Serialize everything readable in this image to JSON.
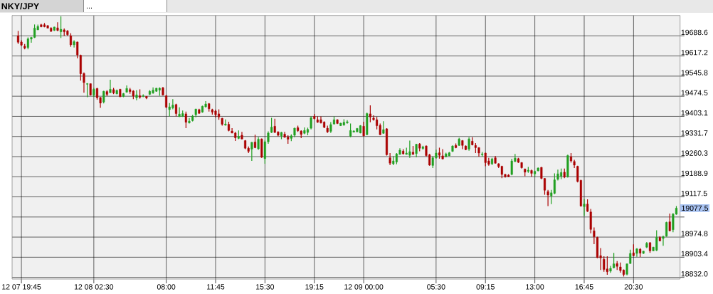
{
  "chart_data": {
    "type": "candlestick",
    "title": "NKY/JPY",
    "subtitle": "...",
    "categories": [
      null,
      "12 07 19:45",
      null,
      null,
      null,
      null,
      null,
      null,
      null,
      null,
      null,
      null,
      null,
      null,
      null,
      null,
      null,
      null,
      null,
      null,
      null,
      null,
      null,
      "12 08 02:30",
      null,
      null,
      null,
      null,
      null,
      null,
      null,
      null,
      null,
      null,
      null,
      null,
      null,
      null,
      null,
      null,
      null,
      null,
      null,
      null,
      null,
      "08:00",
      null,
      null,
      null,
      null,
      null,
      null,
      null,
      null,
      null,
      null,
      null,
      null,
      null,
      null,
      "11:45",
      null,
      null,
      null,
      null,
      null,
      null,
      null,
      null,
      null,
      null,
      null,
      null,
      null,
      null,
      "15:30",
      null,
      null,
      null,
      null,
      null,
      null,
      null,
      null,
      null,
      null,
      null,
      null,
      null,
      null,
      "19:15",
      null,
      null,
      null,
      null,
      null,
      null,
      null,
      null,
      null,
      null,
      null,
      null,
      null,
      null,
      "12 09 00:00",
      null,
      null,
      null,
      null,
      null,
      null,
      null,
      null,
      null,
      null,
      null,
      null,
      null,
      null,
      null,
      null,
      null,
      null,
      null,
      null,
      null,
      "05:30",
      null,
      null,
      null,
      null,
      null,
      null,
      null,
      null,
      null,
      null,
      null,
      null,
      null,
      null,
      "09:15",
      null,
      null,
      null,
      null,
      null,
      null,
      null,
      null,
      null,
      null,
      null,
      null,
      null,
      null,
      "13:00",
      null,
      null,
      null,
      null,
      null,
      null,
      null,
      null,
      null,
      null,
      null,
      null,
      null,
      null,
      "16:45",
      null,
      null,
      null,
      null,
      null,
      null,
      null,
      null,
      null,
      null,
      null,
      null,
      null,
      null,
      "20:30",
      null,
      null,
      null,
      null,
      null,
      null,
      null,
      null,
      null,
      null,
      null,
      null,
      null
    ],
    "ohlc": [
      [
        19689,
        19706,
        19660,
        19666
      ],
      [
        19667,
        19673,
        19652,
        19656
      ],
      [
        19652,
        19660,
        19641,
        19645
      ],
      [
        19647,
        19683,
        19641,
        19678
      ],
      [
        19677,
        19685,
        19664,
        19683
      ],
      [
        19683,
        19729,
        19681,
        19716
      ],
      [
        19710,
        19729,
        19709,
        19722
      ],
      [
        19728,
        19731,
        19719,
        19721
      ],
      [
        19728,
        19734,
        19719,
        19721
      ],
      [
        19725,
        19727,
        19715,
        19716
      ],
      [
        19716,
        19719,
        19702,
        19705
      ],
      [
        19708,
        19721,
        19706,
        19720
      ],
      [
        19717,
        19737,
        19705,
        19708
      ],
      [
        19703,
        19758,
        19681,
        19712
      ],
      [
        19710,
        19715,
        19689,
        19703
      ],
      [
        19706,
        19709,
        19689,
        19693
      ],
      [
        19689,
        19698,
        19650,
        19657
      ],
      [
        19657,
        19673,
        19647,
        19668
      ],
      [
        19667,
        19668,
        19609,
        19621
      ],
      [
        19620,
        19622,
        19530,
        19554
      ],
      [
        19555,
        19559,
        19487,
        19523
      ],
      [
        19517,
        19521,
        19471,
        19519
      ],
      [
        19519,
        19520,
        19477,
        19479
      ],
      [
        19479,
        19504,
        19472,
        19499
      ],
      [
        19502,
        19504,
        19462,
        19469
      ],
      [
        19470,
        19472,
        19433,
        19450
      ],
      [
        19454,
        19494,
        19449,
        19492
      ],
      [
        19491,
        19496,
        19475,
        19481
      ],
      [
        19487,
        19533,
        19486,
        19499
      ],
      [
        19498,
        19504,
        19482,
        19486
      ],
      [
        19483,
        19498,
        19481,
        19495
      ],
      [
        19499,
        19501,
        19471,
        19473
      ],
      [
        19474,
        19486,
        19471,
        19484
      ],
      [
        19489,
        19513,
        19487,
        19502
      ],
      [
        19498,
        19504,
        19483,
        19491
      ],
      [
        19493,
        19496,
        19464,
        19475
      ],
      [
        19469,
        19496,
        19460,
        19479
      ],
      [
        19476,
        19499,
        19466,
        19471
      ],
      [
        19474,
        19481,
        19471,
        19476
      ],
      [
        19474,
        19475,
        19464,
        19468
      ],
      [
        19481,
        19496,
        19479,
        19492
      ],
      [
        19486,
        19506,
        19483,
        19496
      ],
      [
        19492,
        19504,
        19490,
        19503
      ],
      [
        19496,
        19506,
        19476,
        19503
      ],
      [
        19504,
        19508,
        19477,
        19479
      ],
      [
        19476,
        19479,
        19433,
        19435
      ],
      [
        19427,
        19450,
        19403,
        19437
      ],
      [
        19433,
        19464,
        19428,
        19443
      ],
      [
        19445,
        19448,
        19403,
        19413
      ],
      [
        19402,
        19435,
        19401,
        19411
      ],
      [
        19403,
        19424,
        19401,
        19413
      ],
      [
        19412,
        19420,
        19361,
        19382
      ],
      [
        19380,
        19397,
        19378,
        19386
      ],
      [
        19388,
        19408,
        19385,
        19404
      ],
      [
        19409,
        19430,
        19400,
        19429
      ],
      [
        19427,
        19430,
        19412,
        19414
      ],
      [
        19418,
        19441,
        19416,
        19439
      ],
      [
        19437,
        19457,
        19434,
        19447
      ],
      [
        19448,
        19450,
        19420,
        19430
      ],
      [
        19427,
        19430,
        19409,
        19418
      ],
      [
        19422,
        19427,
        19399,
        19409
      ],
      [
        19412,
        19428,
        19391,
        19401
      ],
      [
        19396,
        19398,
        19370,
        19375
      ],
      [
        19372,
        19392,
        19370,
        19376
      ],
      [
        19375,
        19384,
        19350,
        19353
      ],
      [
        19351,
        19361,
        19343,
        19344
      ],
      [
        19344,
        19348,
        19316,
        19327
      ],
      [
        19325,
        19353,
        19322,
        19332
      ],
      [
        19336,
        19348,
        19321,
        19323
      ],
      [
        19317,
        19319,
        19287,
        19290
      ],
      [
        19290,
        19296,
        19273,
        19279
      ],
      [
        19287,
        19312,
        19245,
        19311
      ],
      [
        19312,
        19338,
        19290,
        19292
      ],
      [
        19288,
        19330,
        19284,
        19322
      ],
      [
        19323,
        19325,
        19256,
        19258
      ],
      [
        19253,
        19319,
        19235,
        19313
      ],
      [
        19313,
        19350,
        19306,
        19344
      ],
      [
        19346,
        19398,
        19344,
        19365
      ],
      [
        19368,
        19395,
        19344,
        19346
      ],
      [
        19348,
        19350,
        19332,
        19336
      ],
      [
        19334,
        19348,
        19322,
        19346
      ],
      [
        19340,
        19348,
        19327,
        19329
      ],
      [
        19330,
        19336,
        19306,
        19322
      ],
      [
        19325,
        19339,
        19315,
        19334
      ],
      [
        19336,
        19363,
        19329,
        19361
      ],
      [
        19363,
        19370,
        19348,
        19352
      ],
      [
        19351,
        19354,
        19326,
        19339
      ],
      [
        19343,
        19364,
        19340,
        19353
      ],
      [
        19346,
        19363,
        19336,
        19357
      ],
      [
        19361,
        19403,
        19357,
        19398
      ],
      [
        19403,
        19412,
        19392,
        19395
      ],
      [
        19391,
        19403,
        19380,
        19382
      ],
      [
        19391,
        19403,
        19378,
        19380
      ],
      [
        19383,
        19385,
        19361,
        19364
      ],
      [
        19361,
        19370,
        19344,
        19348
      ],
      [
        19350,
        19383,
        19344,
        19374
      ],
      [
        19376,
        19403,
        19374,
        19391
      ],
      [
        19391,
        19393,
        19376,
        19378
      ],
      [
        19370,
        19380,
        19369,
        19379
      ],
      [
        19372,
        19393,
        19370,
        19382
      ],
      [
        19380,
        19390,
        19377,
        19384
      ],
      [
        19332,
        19378,
        19329,
        19353
      ],
      [
        19347,
        19354,
        19346,
        19351
      ],
      [
        19348,
        19362,
        19347,
        19360
      ],
      [
        19344,
        19372,
        19343,
        19370
      ],
      [
        19368,
        19384,
        19332,
        19334
      ],
      [
        19338,
        19416,
        19337,
        19413
      ],
      [
        19412,
        19442,
        19382,
        19401
      ],
      [
        19397,
        19407,
        19388,
        19391
      ],
      [
        19391,
        19401,
        19357,
        19370
      ],
      [
        19371,
        19378,
        19337,
        19338
      ],
      [
        19343,
        19386,
        19341,
        19356
      ],
      [
        19359,
        19361,
        19264,
        19267
      ],
      [
        19256,
        19273,
        19230,
        19237
      ],
      [
        19235,
        19262,
        19230,
        19245
      ],
      [
        19241,
        19273,
        19233,
        19270
      ],
      [
        19268,
        19290,
        19267,
        19283
      ],
      [
        19280,
        19287,
        19268,
        19270
      ],
      [
        19268,
        19292,
        19267,
        19273
      ],
      [
        19265,
        19317,
        19256,
        19278
      ],
      [
        19276,
        19298,
        19267,
        19268
      ],
      [
        19271,
        19306,
        19258,
        19304
      ],
      [
        19305,
        19308,
        19279,
        19290
      ],
      [
        19289,
        19299,
        19285,
        19295
      ],
      [
        19298,
        19300,
        19260,
        19264
      ],
      [
        19267,
        19270,
        19228,
        19230
      ],
      [
        19229,
        19262,
        19220,
        19256
      ],
      [
        19256,
        19285,
        19253,
        19273
      ],
      [
        19274,
        19292,
        19253,
        19265
      ],
      [
        19263,
        19287,
        19250,
        19252
      ],
      [
        19260,
        19274,
        19258,
        19270
      ],
      [
        19263,
        19277,
        19262,
        19274
      ],
      [
        19279,
        19300,
        19277,
        19298
      ],
      [
        19300,
        19307,
        19290,
        19292
      ],
      [
        19300,
        19327,
        19298,
        19323
      ],
      [
        19317,
        19319,
        19287,
        19300
      ],
      [
        19298,
        19300,
        19283,
        19285
      ],
      [
        19287,
        19329,
        19281,
        19323
      ],
      [
        19315,
        19329,
        19300,
        19302
      ],
      [
        19300,
        19308,
        19273,
        19292
      ],
      [
        19292,
        19294,
        19260,
        19273
      ],
      [
        19267,
        19277,
        19260,
        19270
      ],
      [
        19273,
        19274,
        19226,
        19239
      ],
      [
        19245,
        19256,
        19228,
        19233
      ],
      [
        19235,
        19256,
        19230,
        19252
      ],
      [
        19256,
        19263,
        19235,
        19237
      ],
      [
        19235,
        19237,
        19220,
        19225
      ],
      [
        19226,
        19228,
        19184,
        19197
      ],
      [
        19197,
        19199,
        19186,
        19189
      ],
      [
        19195,
        19198,
        19187,
        19189
      ],
      [
        19197,
        19253,
        19194,
        19245
      ],
      [
        19243,
        19270,
        19241,
        19255
      ],
      [
        19253,
        19256,
        19238,
        19240
      ],
      [
        19239,
        19241,
        19218,
        19221
      ],
      [
        19216,
        19218,
        19191,
        19205
      ],
      [
        19208,
        19224,
        19203,
        19212
      ],
      [
        19211,
        19214,
        19189,
        19201
      ],
      [
        19199,
        19211,
        19189,
        19208
      ],
      [
        19210,
        19222,
        19208,
        19220
      ],
      [
        19222,
        19224,
        19180,
        19183
      ],
      [
        19183,
        19184,
        19125,
        19141
      ],
      [
        19136,
        19142,
        19085,
        19124
      ],
      [
        19121,
        19142,
        19092,
        19132
      ],
      [
        19130,
        19201,
        19127,
        19178
      ],
      [
        19180,
        19214,
        19176,
        19199
      ],
      [
        19191,
        19218,
        19180,
        19204
      ],
      [
        19205,
        19218,
        19184,
        19188
      ],
      [
        19189,
        19267,
        19186,
        19264
      ],
      [
        19260,
        19273,
        19239,
        19245
      ],
      [
        19243,
        19249,
        19220,
        19230
      ],
      [
        19226,
        19228,
        19169,
        19172
      ],
      [
        19176,
        19178,
        19083,
        19085
      ],
      [
        19083,
        19110,
        19050,
        19092
      ],
      [
        19092,
        19109,
        19064,
        19066
      ],
      [
        19064,
        19075,
        18988,
        19002
      ],
      [
        18997,
        19009,
        18950,
        18976
      ],
      [
        18974,
        18976,
        18900,
        18902
      ],
      [
        18909,
        18936,
        18858,
        18901
      ],
      [
        18896,
        18907,
        18852,
        18860
      ],
      [
        18862,
        18907,
        18841,
        18852
      ],
      [
        18854,
        18873,
        18848,
        18864
      ],
      [
        18866,
        18919,
        18864,
        18880
      ],
      [
        18881,
        18890,
        18858,
        18871
      ],
      [
        18869,
        18885,
        18849,
        18856
      ],
      [
        18858,
        18860,
        18835,
        18842
      ],
      [
        18843,
        18881,
        18839,
        18880
      ],
      [
        18881,
        18930,
        18880,
        18917
      ],
      [
        18919,
        18949,
        18907,
        18909
      ],
      [
        18917,
        18936,
        18905,
        18933
      ],
      [
        18932,
        18936,
        18904,
        18918
      ],
      [
        18917,
        18926,
        18915,
        18925
      ],
      [
        18939,
        18957,
        18936,
        18953
      ],
      [
        18955,
        18957,
        18919,
        18926
      ],
      [
        18926,
        18940,
        18925,
        18939
      ],
      [
        18928,
        18999,
        18925,
        18974
      ],
      [
        18974,
        18978,
        18960,
        18961
      ],
      [
        18970,
        18980,
        18944,
        18976
      ],
      [
        18978,
        19029,
        18976,
        19027
      ],
      [
        19029,
        19058,
        18995,
        18997
      ],
      [
        19001,
        19060,
        18992,
        19056
      ],
      [
        19056,
        19085,
        19054,
        19077.5
      ]
    ],
    "colors": [
      "#aa0000",
      "#aa0000",
      "#aa0000",
      "#22a022",
      "#22a022",
      "#22a022",
      "#22a022",
      "#aa0000",
      "#aa0000",
      "#aa0000",
      "#aa0000",
      "#22a022",
      "#aa0000",
      "#22a022",
      "#aa0000",
      "#aa0000",
      "#aa0000",
      "#22a022",
      "#aa0000",
      "#aa0000",
      "#aa0000",
      "#22a022",
      "#aa0000",
      "#22a022",
      "#aa0000",
      "#aa0000",
      "#22a022",
      "#aa0000",
      "#22a022",
      "#aa0000",
      "#22a022",
      "#aa0000",
      "#22a022",
      "#22a022",
      "#aa0000",
      "#aa0000",
      "#22a022",
      "#aa0000",
      "#22a022",
      "#aa0000",
      "#22a022",
      "#22a022",
      "#22a022",
      "#22a022",
      "#aa0000",
      "#aa0000",
      "#22a022",
      "#22a022",
      "#aa0000",
      "#22a022",
      "#22a022",
      "#aa0000",
      "#22a022",
      "#22a022",
      "#22a022",
      "#aa0000",
      "#22a022",
      "#22a022",
      "#aa0000",
      "#aa0000",
      "#aa0000",
      "#aa0000",
      "#aa0000",
      "#22a022",
      "#aa0000",
      "#aa0000",
      "#aa0000",
      "#22a022",
      "#aa0000",
      "#aa0000",
      "#aa0000",
      "#22a022",
      "#aa0000",
      "#22a022",
      "#aa0000",
      "#22a022",
      "#22a022",
      "#22a022",
      "#aa0000",
      "#aa0000",
      "#22a022",
      "#aa0000",
      "#aa0000",
      "#22a022",
      "#22a022",
      "#aa0000",
      "#aa0000",
      "#22a022",
      "#22a022",
      "#22a022",
      "#aa0000",
      "#aa0000",
      "#aa0000",
      "#aa0000",
      "#aa0000",
      "#22a022",
      "#22a022",
      "#aa0000",
      "#22a022",
      "#22a022",
      "#22a022",
      "#22a022",
      "#22a022",
      "#22a022",
      "#22a022",
      "#aa0000",
      "#22a022",
      "#aa0000",
      "#aa0000",
      "#aa0000",
      "#aa0000",
      "#22a022",
      "#aa0000",
      "#aa0000",
      "#22a022",
      "#22a022",
      "#22a022",
      "#aa0000",
      "#22a022",
      "#22a022",
      "#aa0000",
      "#22a022",
      "#aa0000",
      "#22a022",
      "#aa0000",
      "#aa0000",
      "#22a022",
      "#22a022",
      "#aa0000",
      "#aa0000",
      "#22a022",
      "#22a022",
      "#22a022",
      "#aa0000",
      "#22a022",
      "#aa0000",
      "#aa0000",
      "#22a022",
      "#aa0000",
      "#aa0000",
      "#aa0000",
      "#22a022",
      "#aa0000",
      "#aa0000",
      "#22a022",
      "#aa0000",
      "#aa0000",
      "#aa0000",
      "#aa0000",
      "#aa0000",
      "#22a022",
      "#22a022",
      "#aa0000",
      "#aa0000",
      "#aa0000",
      "#22a022",
      "#aa0000",
      "#22a022",
      "#22a022",
      "#aa0000",
      "#aa0000",
      "#aa0000",
      "#22a022",
      "#22a022",
      "#22a022",
      "#22a022",
      "#aa0000",
      "#22a022",
      "#aa0000",
      "#aa0000",
      "#aa0000",
      "#aa0000",
      "#22a022",
      "#aa0000",
      "#aa0000",
      "#aa0000",
      "#aa0000",
      "#aa0000",
      "#aa0000",
      "#aa0000",
      "#22a022",
      "#22a022",
      "#aa0000",
      "#aa0000",
      "#aa0000",
      "#22a022",
      "#22a022",
      "#aa0000",
      "#22a022",
      "#aa0000",
      "#22a022",
      "#22a022",
      "#aa0000",
      "#22a022",
      "#22a022",
      "#aa0000",
      "#22a022",
      "#22a022",
      "#aa0000",
      "#22a022",
      "#22a022"
    ],
    "ylim": [
      18826,
      19761
    ],
    "yticks": [
      {
        "value": 18832,
        "label": "18832.0"
      },
      18903.4,
      18974.8,
      {
        "value": 19046.1,
        "label": null
      },
      19117.5,
      19188.9,
      19260.3,
      19331.7,
      19403.1,
      19474.5,
      19545.8,
      19617.2,
      19688.6
    ],
    "grid": true,
    "annotations": [
      "19077.5"
    ]
  }
}
